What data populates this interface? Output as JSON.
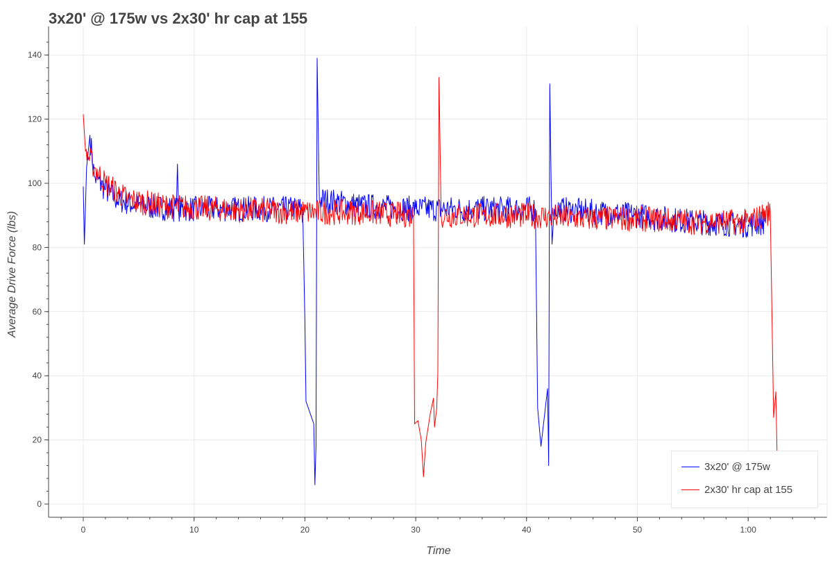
{
  "chart_data": {
    "type": "line",
    "title": "3x20' @ 175w vs 2x30' hr cap at 155",
    "xlabel": "Time",
    "ylabel": "Average Drive Force (lbs)",
    "xlim": [
      -3,
      67
    ],
    "ylim": [
      -3,
      147
    ],
    "x_ticks": [
      0,
      10,
      20,
      30,
      40,
      50,
      60
    ],
    "x_tick_labels": [
      "0",
      "10",
      "20",
      "30",
      "40",
      "50",
      "1:00"
    ],
    "y_ticks": [
      0,
      20,
      40,
      60,
      80,
      100,
      120,
      140
    ],
    "y_tick_labels": [
      "0",
      "20",
      "40",
      "60",
      "80",
      "100",
      "120",
      "140"
    ],
    "grid": true,
    "legend_position": "bottom-right",
    "noise_amplitude_lbs": 4,
    "series": [
      {
        "name": "3x20' @ 175w",
        "color": "#0000ff",
        "points": [
          [
            0,
            99
          ],
          [
            0.1,
            81
          ],
          [
            0.3,
            105
          ],
          [
            0.6,
            115
          ],
          [
            1,
            102
          ],
          [
            2,
            98
          ],
          [
            3,
            95
          ],
          [
            5,
            93
          ],
          [
            8.4,
            92
          ],
          [
            8.5,
            106
          ],
          [
            8.6,
            92
          ],
          [
            12,
            92
          ],
          [
            16,
            92
          ],
          [
            19.8,
            92
          ],
          [
            20,
            57
          ],
          [
            20.1,
            32
          ],
          [
            20.5,
            28
          ],
          [
            20.8,
            25
          ],
          [
            20.9,
            6
          ],
          [
            21,
            18
          ],
          [
            21.1,
            139
          ],
          [
            21.3,
            95
          ],
          [
            25,
            93
          ],
          [
            30,
            92
          ],
          [
            35,
            92
          ],
          [
            40.8,
            92
          ],
          [
            41,
            30
          ],
          [
            41.3,
            18
          ],
          [
            41.9,
            36
          ],
          [
            42,
            12
          ],
          [
            42.1,
            131
          ],
          [
            42.3,
            81
          ],
          [
            42.5,
            92
          ],
          [
            50,
            90
          ],
          [
            55,
            88
          ],
          [
            60,
            87
          ],
          [
            61.5,
            88
          ]
        ]
      },
      {
        "name": "2x30' hr cap at 155",
        "color": "#ff0000",
        "points": [
          [
            0,
            121.5
          ],
          [
            0.2,
            110
          ],
          [
            1,
            105
          ],
          [
            2,
            100
          ],
          [
            4,
            95
          ],
          [
            7,
            93
          ],
          [
            12,
            92
          ],
          [
            20,
            91
          ],
          [
            25,
            91
          ],
          [
            29.8,
            90
          ],
          [
            29.9,
            25
          ],
          [
            30.2,
            26
          ],
          [
            30.5,
            20
          ],
          [
            30.7,
            8.5
          ],
          [
            30.9,
            19
          ],
          [
            31.3,
            28
          ],
          [
            31.6,
            33
          ],
          [
            31.7,
            24
          ],
          [
            31.9,
            30
          ],
          [
            32,
            41
          ],
          [
            32.1,
            133
          ],
          [
            32.3,
            90
          ],
          [
            36,
            90
          ],
          [
            40,
            90
          ],
          [
            45,
            89
          ],
          [
            50,
            89
          ],
          [
            55,
            88
          ],
          [
            60,
            88
          ],
          [
            62,
            91
          ],
          [
            62.2,
            48
          ],
          [
            62.3,
            27
          ],
          [
            62.5,
            35
          ],
          [
            62.6,
            17
          ],
          [
            62.8,
            3
          ],
          [
            63.9,
            3
          ]
        ]
      }
    ]
  }
}
